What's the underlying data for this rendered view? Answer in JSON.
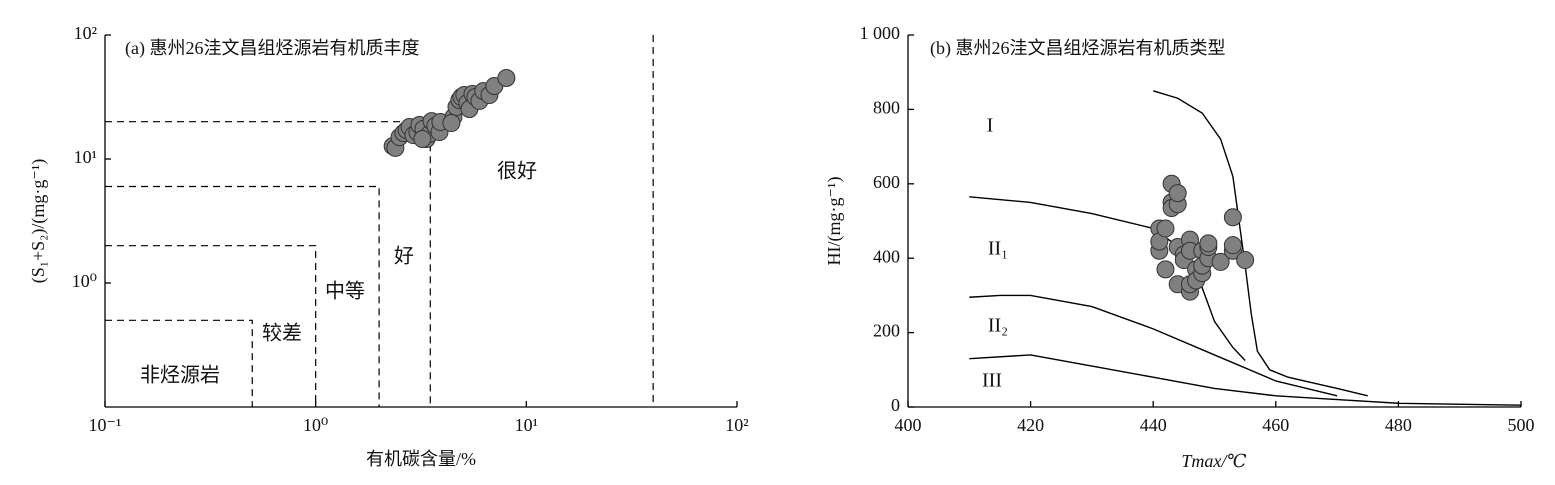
{
  "chart_data": [
    {
      "type": "scatter",
      "title": "(a) 惠州26洼文昌组烃源岩有机质丰度",
      "x_label": "有机碳含量/%",
      "y_label": "(S₁+S₂)/(mg·g⁻¹)",
      "xscale": "log",
      "yscale": "log",
      "xlim": [
        0.1,
        100
      ],
      "ylim": [
        0.1,
        100
      ],
      "xticks": [
        {
          "value": 0.1,
          "label": "10⁻¹"
        },
        {
          "value": 1,
          "label": "10⁰"
        },
        {
          "value": 10,
          "label": "10¹"
        },
        {
          "value": 100,
          "label": "10²"
        }
      ],
      "yticks": [
        {
          "value": 1,
          "label": "10⁰"
        },
        {
          "value": 10,
          "label": "10¹"
        },
        {
          "value": 100,
          "label": "10²"
        }
      ],
      "boundaries": [
        {
          "x": 0.5,
          "y": 0.5
        },
        {
          "x": 1,
          "y": 2
        },
        {
          "x": 2,
          "y": 6
        },
        {
          "x": 3.5,
          "y": 20
        },
        {
          "x": 40
        }
      ],
      "annotations": [
        "非烃源岩",
        "较差",
        "中等",
        "好",
        "很好"
      ],
      "color": "#808080",
      "x": [
        2.32,
        2.39,
        2.5,
        2.61,
        2.7,
        2.79,
        2.91,
        3.04,
        3.11,
        3.25,
        3.36,
        3.47,
        3.55,
        3.7,
        3.87,
        3.91,
        4.51,
        4.66,
        4.81,
        4.92,
        5.08,
        5.25,
        5.37,
        5.55,
        5.73,
        5.99,
        6.25,
        6.68,
        7.05,
        8.04,
        4.41,
        3.21
      ],
      "values": [
        12.7,
        12.3,
        15.0,
        16.2,
        17.1,
        18.1,
        15.6,
        16.5,
        18.8,
        17.5,
        14.5,
        15.9,
        20.2,
        18.5,
        16.5,
        19.9,
        21.8,
        26.3,
        29.9,
        31.6,
        32.8,
        28.3,
        25.3,
        33.4,
        31.6,
        29.4,
        35.3,
        32.8,
        38.8,
        45.0,
        19.5,
        14.5
      ]
    },
    {
      "type": "scatter",
      "title": "(b) 惠州26洼文昌组烃源岩有机质类型",
      "x_label": "Tmax/℃",
      "y_label": "HI/(mg·g⁻¹)",
      "xlim": [
        400,
        500
      ],
      "ylim": [
        0,
        1000
      ],
      "xticks": [
        400,
        420,
        440,
        460,
        480,
        500
      ],
      "yticks": [
        0,
        200,
        400,
        600,
        800,
        {
          "value": 1000,
          "label": "1 000"
        }
      ],
      "annotations": [
        "I",
        "II₁",
        "II₂",
        "III"
      ],
      "color": "#808080",
      "curves": [
        {
          "x": [
            440,
            444,
            448,
            451,
            453,
            454,
            455,
            456,
            457,
            459,
            462,
            470,
            475
          ],
          "values": [
            850,
            830,
            790,
            720,
            620,
            500,
            380,
            250,
            150,
            100,
            80,
            50,
            30
          ]
        },
        {
          "x": [
            410,
            420,
            430,
            440,
            445,
            448,
            450,
            453,
            455
          ],
          "values": [
            565,
            550,
            520,
            480,
            420,
            320,
            230,
            160,
            125
          ]
        },
        {
          "x": [
            410,
            415,
            420,
            430,
            440,
            450,
            460,
            470
          ],
          "values": [
            295,
            300,
            300,
            270,
            210,
            140,
            70,
            30
          ]
        },
        {
          "x": [
            410,
            420,
            430,
            440,
            450,
            460,
            470,
            480,
            500
          ],
          "values": [
            130,
            140,
            110,
            80,
            50,
            30,
            20,
            10,
            5
          ]
        }
      ],
      "x": [
        441,
        441,
        441,
        442,
        442,
        443,
        443,
        443,
        444,
        444,
        444,
        444,
        445,
        445,
        446,
        446,
        446,
        446,
        447,
        447,
        448,
        448,
        448,
        449,
        449,
        449,
        451,
        453,
        453,
        453,
        455
      ],
      "values": [
        480,
        420,
        445,
        370,
        480,
        600,
        550,
        535,
        545,
        575,
        430,
        330,
        410,
        395,
        450,
        420,
        310,
        330,
        370,
        340,
        360,
        420,
        380,
        400,
        430,
        440,
        390,
        420,
        435,
        510,
        395
      ]
    }
  ]
}
